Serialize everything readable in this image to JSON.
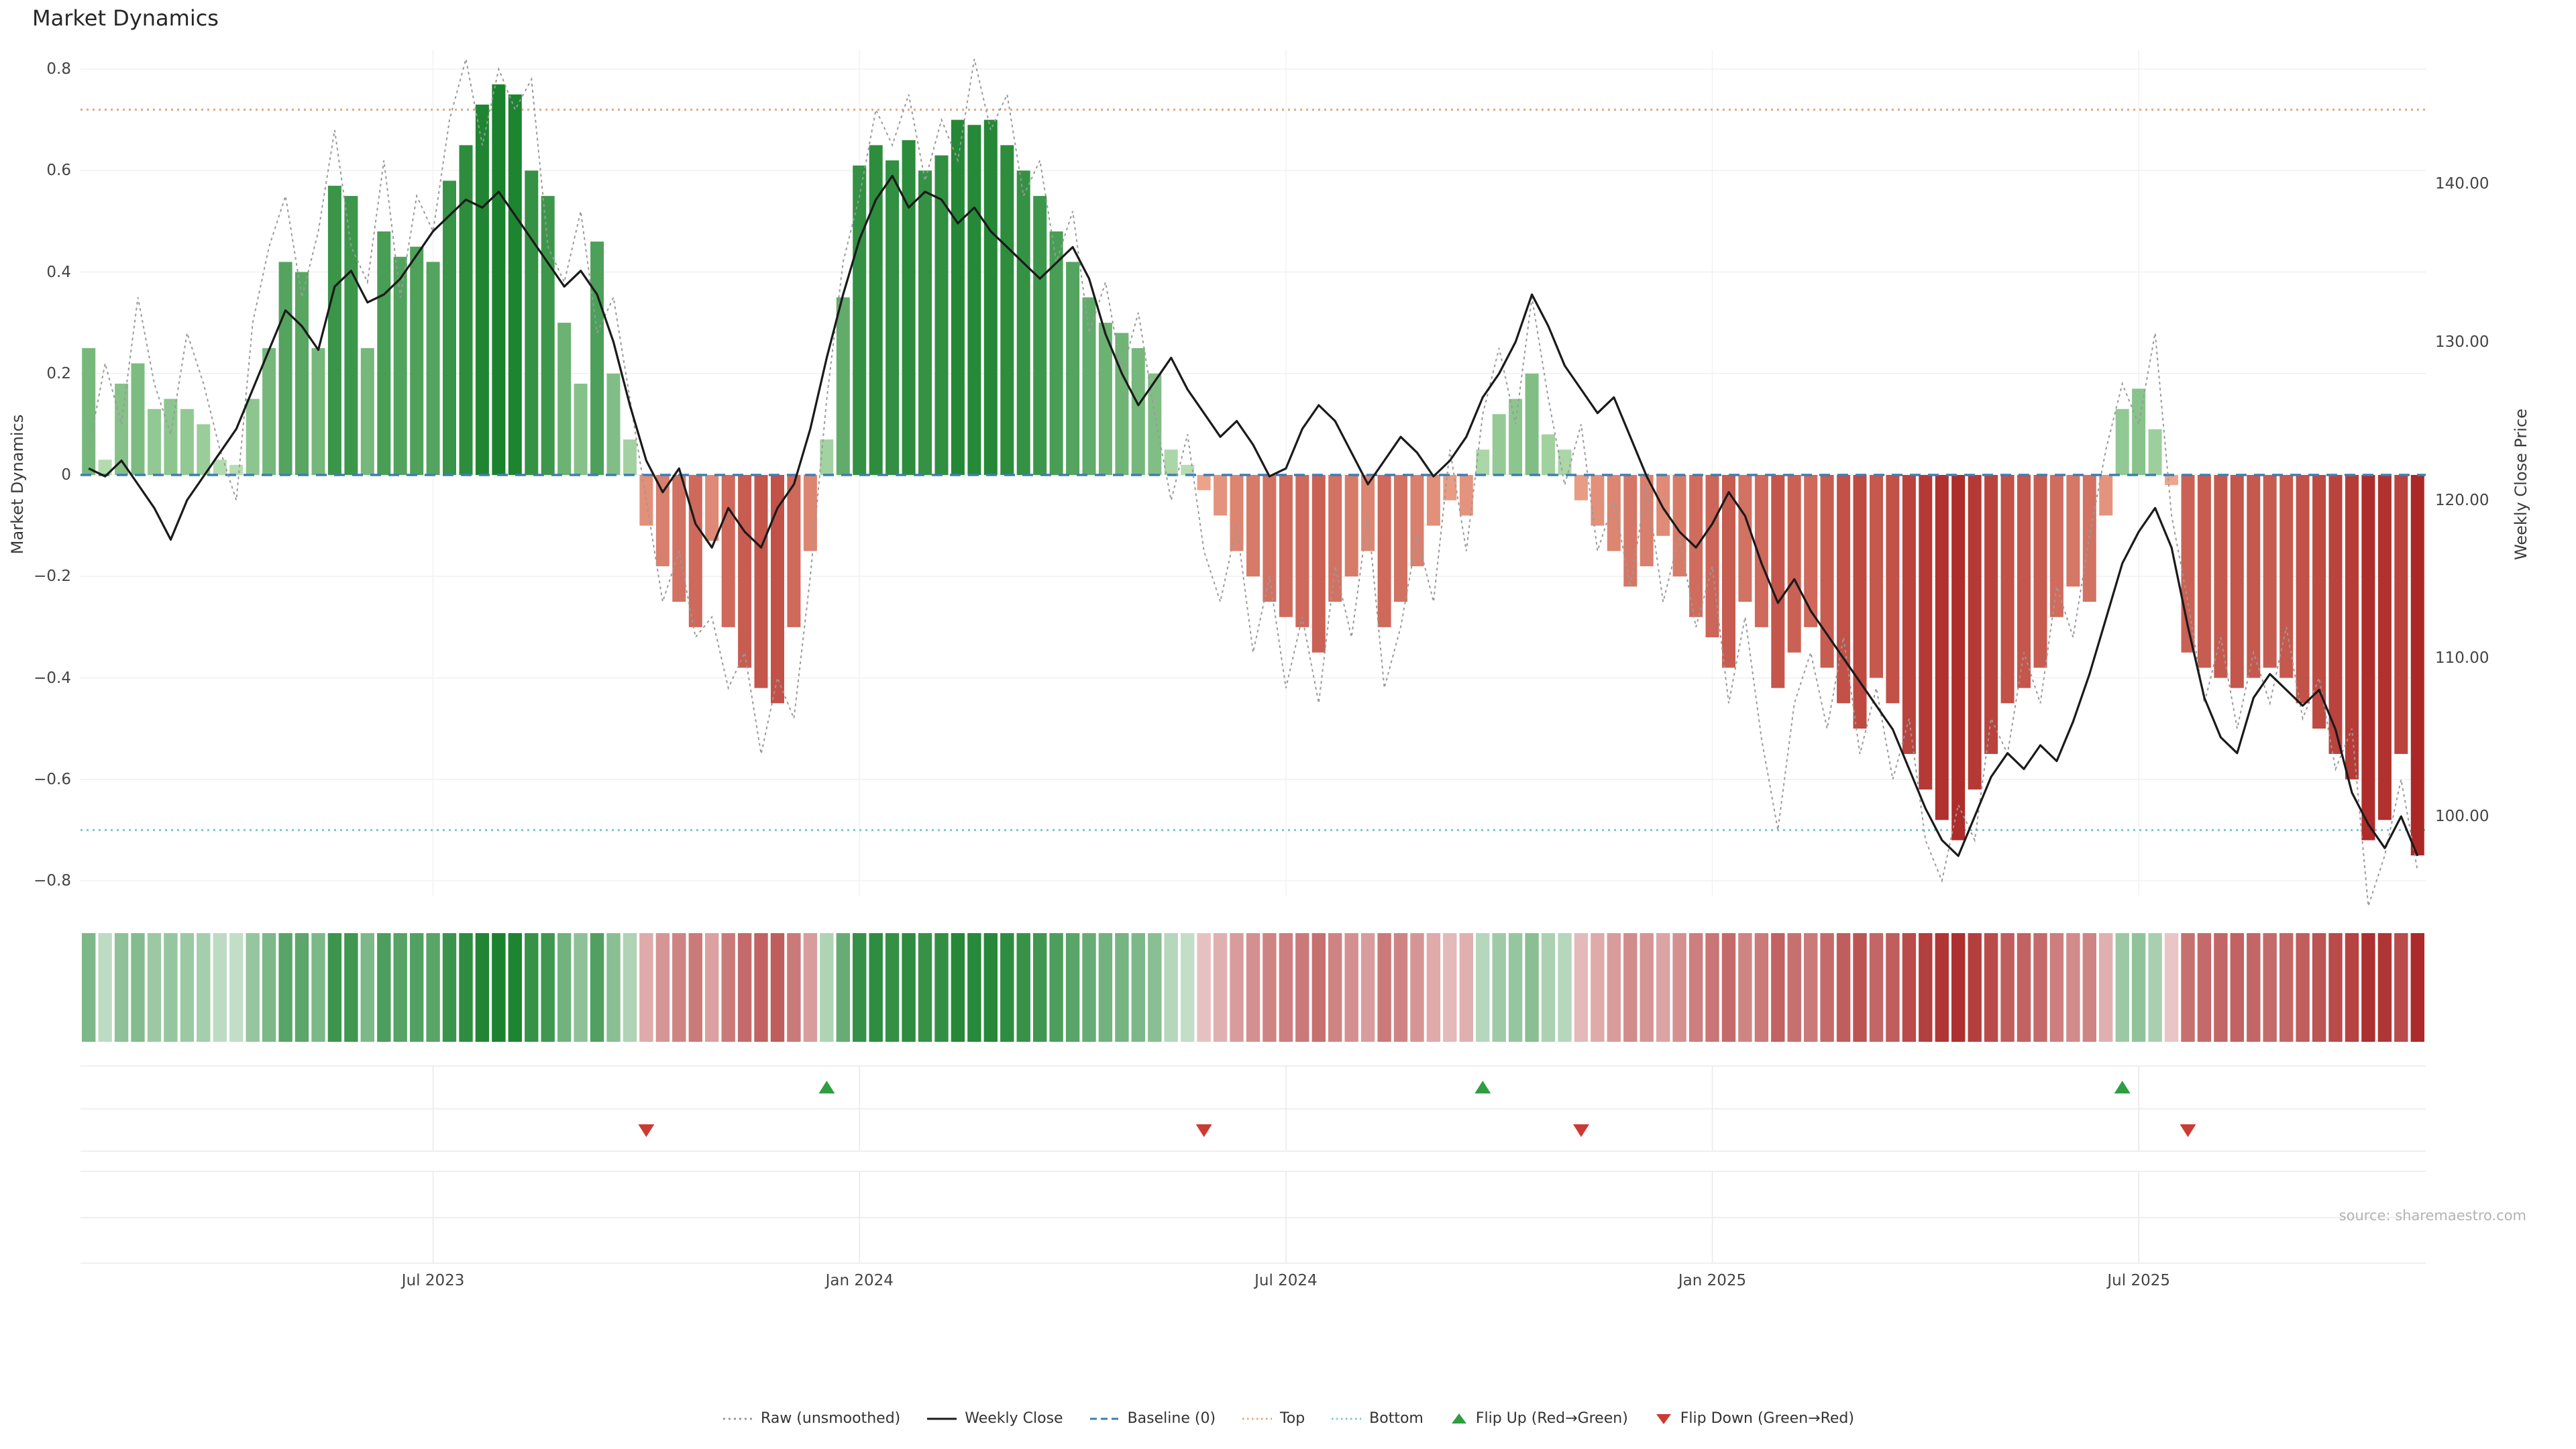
{
  "title": "Market Dynamics",
  "source": "source: sharemaestro.com",
  "axes": {
    "left_label": "Market Dynamics",
    "right_label": "Weekly Close Price",
    "left_ticks": [
      0.8,
      0.6,
      0.4,
      0.2,
      0,
      -0.2,
      -0.4,
      -0.6,
      -0.8
    ],
    "right_ticks": [
      140,
      130,
      120,
      110,
      100
    ],
    "x_ticks": [
      {
        "label": "Jul 2023",
        "week": 21
      },
      {
        "label": "Jan 2024",
        "week": 47
      },
      {
        "label": "Jul 2024",
        "week": 73
      },
      {
        "label": "Jan 2025",
        "week": 99
      },
      {
        "label": "Jul 2025",
        "week": 125
      }
    ]
  },
  "chart_data": {
    "type": "bar+line",
    "x_unit": "week",
    "n_points": 143,
    "left_ylim": [
      -0.8,
      0.8
    ],
    "right_axis_ticks": [
      100,
      110,
      120,
      130,
      140
    ],
    "baseline": 0,
    "top_threshold": 0.72,
    "bottom_threshold": -0.7,
    "bars_market_dynamics": [
      0.25,
      0.03,
      0.18,
      0.22,
      0.13,
      0.15,
      0.13,
      0.1,
      0.03,
      0.02,
      0.15,
      0.25,
      0.42,
      0.4,
      0.25,
      0.57,
      0.55,
      0.25,
      0.48,
      0.43,
      0.45,
      0.42,
      0.58,
      0.65,
      0.73,
      0.77,
      0.75,
      0.6,
      0.55,
      0.3,
      0.18,
      0.46,
      0.2,
      0.07,
      -0.1,
      -0.18,
      -0.25,
      -0.3,
      -0.13,
      -0.3,
      -0.38,
      -0.42,
      -0.45,
      -0.3,
      -0.15,
      0.07,
      0.35,
      0.61,
      0.65,
      0.62,
      0.66,
      0.6,
      0.63,
      0.7,
      0.69,
      0.7,
      0.65,
      0.6,
      0.55,
      0.48,
      0.42,
      0.35,
      0.3,
      0.28,
      0.25,
      0.2,
      0.05,
      0.02,
      -0.03,
      -0.08,
      -0.15,
      -0.2,
      -0.25,
      -0.28,
      -0.3,
      -0.35,
      -0.25,
      -0.2,
      -0.15,
      -0.3,
      -0.25,
      -0.18,
      -0.1,
      -0.05,
      -0.08,
      0.05,
      0.12,
      0.15,
      0.2,
      0.08,
      0.05,
      -0.05,
      -0.1,
      -0.15,
      -0.22,
      -0.18,
      -0.12,
      -0.2,
      -0.28,
      -0.32,
      -0.38,
      -0.25,
      -0.3,
      -0.42,
      -0.35,
      -0.3,
      -0.38,
      -0.45,
      -0.5,
      -0.4,
      -0.45,
      -0.55,
      -0.62,
      -0.68,
      -0.72,
      -0.62,
      -0.55,
      -0.45,
      -0.42,
      -0.38,
      -0.28,
      -0.22,
      -0.25,
      -0.08,
      0.13,
      0.17,
      0.09,
      -0.02,
      -0.35,
      -0.38,
      -0.4,
      -0.42,
      -0.4,
      -0.38,
      -0.4,
      -0.45,
      -0.5,
      -0.55,
      -0.6,
      -0.72,
      -0.68,
      -0.55,
      -0.75
    ],
    "line_weekly_close": [
      122.0,
      121.5,
      122.5,
      121.0,
      119.5,
      117.5,
      120.0,
      121.5,
      123.0,
      124.5,
      127.0,
      129.5,
      132.0,
      131.0,
      129.5,
      133.5,
      134.5,
      132.5,
      133.0,
      134.0,
      135.5,
      137.0,
      138.0,
      139.0,
      138.5,
      139.5,
      138.0,
      136.5,
      135.0,
      133.5,
      134.5,
      133.0,
      130.0,
      126.0,
      122.5,
      120.5,
      122.0,
      118.5,
      117.0,
      119.5,
      118.0,
      117.0,
      119.5,
      121.0,
      124.5,
      129.0,
      133.0,
      136.5,
      139.0,
      140.5,
      138.5,
      139.5,
      139.0,
      137.5,
      138.5,
      137.0,
      136.0,
      135.0,
      134.0,
      135.0,
      136.0,
      134.0,
      130.5,
      128.0,
      126.0,
      127.5,
      129.0,
      127.0,
      125.5,
      124.0,
      125.0,
      123.5,
      121.5,
      122.0,
      124.5,
      126.0,
      125.0,
      123.0,
      121.0,
      122.5,
      124.0,
      123.0,
      121.5,
      122.5,
      124.0,
      126.5,
      128.0,
      130.0,
      133.0,
      131.0,
      128.5,
      127.0,
      125.5,
      126.5,
      124.0,
      121.5,
      119.5,
      118.0,
      117.0,
      118.5,
      120.5,
      119.0,
      116.0,
      113.5,
      115.0,
      113.0,
      111.5,
      110.0,
      108.5,
      107.0,
      105.5,
      103.0,
      100.5,
      98.5,
      97.5,
      100.0,
      102.5,
      104.0,
      103.0,
      104.5,
      103.5,
      106.0,
      109.0,
      112.5,
      116.0,
      118.0,
      119.5,
      117.0,
      112.0,
      107.5,
      105.0,
      104.0,
      107.5,
      109.0,
      108.0,
      107.0,
      108.0,
      105.5,
      101.5,
      99.5,
      98.0,
      100.0,
      97.5
    ],
    "line_raw_unsmoothed": [
      0.05,
      0.22,
      0.1,
      0.35,
      0.18,
      0.08,
      0.28,
      0.18,
      0.05,
      -0.05,
      0.3,
      0.45,
      0.55,
      0.35,
      0.48,
      0.68,
      0.45,
      0.38,
      0.62,
      0.35,
      0.55,
      0.48,
      0.7,
      0.82,
      0.65,
      0.8,
      0.72,
      0.78,
      0.45,
      0.38,
      0.52,
      0.28,
      0.35,
      0.15,
      -0.05,
      -0.25,
      -0.15,
      -0.32,
      -0.28,
      -0.42,
      -0.35,
      -0.55,
      -0.4,
      -0.48,
      -0.2,
      0.15,
      0.42,
      0.55,
      0.72,
      0.65,
      0.75,
      0.58,
      0.7,
      0.62,
      0.82,
      0.68,
      0.75,
      0.55,
      0.62,
      0.42,
      0.52,
      0.28,
      0.38,
      0.2,
      0.32,
      0.12,
      -0.05,
      0.08,
      -0.15,
      -0.25,
      -0.1,
      -0.35,
      -0.2,
      -0.42,
      -0.28,
      -0.45,
      -0.18,
      -0.32,
      -0.08,
      -0.42,
      -0.3,
      -0.12,
      -0.25,
      0.05,
      -0.15,
      0.12,
      0.25,
      0.1,
      0.35,
      0.15,
      -0.02,
      0.1,
      -0.15,
      -0.05,
      -0.22,
      -0.02,
      -0.25,
      -0.12,
      -0.3,
      -0.18,
      -0.45,
      -0.28,
      -0.52,
      -0.7,
      -0.45,
      -0.35,
      -0.5,
      -0.32,
      -0.55,
      -0.42,
      -0.6,
      -0.48,
      -0.72,
      -0.8,
      -0.65,
      -0.72,
      -0.48,
      -0.55,
      -0.35,
      -0.45,
      -0.22,
      -0.32,
      -0.12,
      0.05,
      0.18,
      0.1,
      0.28,
      -0.08,
      -0.25,
      -0.45,
      -0.32,
      -0.5,
      -0.35,
      -0.45,
      -0.3,
      -0.48,
      -0.4,
      -0.58,
      -0.5,
      -0.85,
      -0.75,
      -0.6,
      -0.78
    ],
    "flip_up_weeks": [
      45,
      85,
      124
    ],
    "flip_down_weeks": [
      34,
      68,
      91,
      128
    ]
  },
  "legend": [
    {
      "label": "Raw (unsmoothed)",
      "type": "dashed-line",
      "color": "#9a9a9a",
      "dash": "3 5"
    },
    {
      "label": "Weekly Close",
      "type": "solid-line",
      "color": "#1a1a1a",
      "dash": null
    },
    {
      "label": "Baseline (0)",
      "type": "dashed-line",
      "color": "#3c7fb1",
      "dash": "10 6"
    },
    {
      "label": "Top",
      "type": "dotted-line",
      "color": "#e4a87e",
      "dash": "2.5 4.5"
    },
    {
      "label": "Bottom",
      "type": "dotted-line",
      "color": "#74cbcb",
      "dash": "2.5 4.5"
    },
    {
      "label": "Flip Up (Red→Green)",
      "type": "triangle-up",
      "color": "#2f9e41",
      "dash": null
    },
    {
      "label": "Flip Down (Green→Red)",
      "type": "triangle-down",
      "color": "#cc3b33",
      "dash": null
    }
  ],
  "colors": {
    "green_dark": "#157f29",
    "green_light": "#c3e5bd",
    "red_dark": "#a92222",
    "red_light": "#f3b195",
    "weekly_close": "#1a1a1a",
    "raw": "#9a9a9a",
    "baseline": "#3c7fb1",
    "top": "#e4a87e",
    "bottom": "#74cbcb",
    "flip_up": "#2f9e41",
    "flip_down": "#cc3b33"
  }
}
